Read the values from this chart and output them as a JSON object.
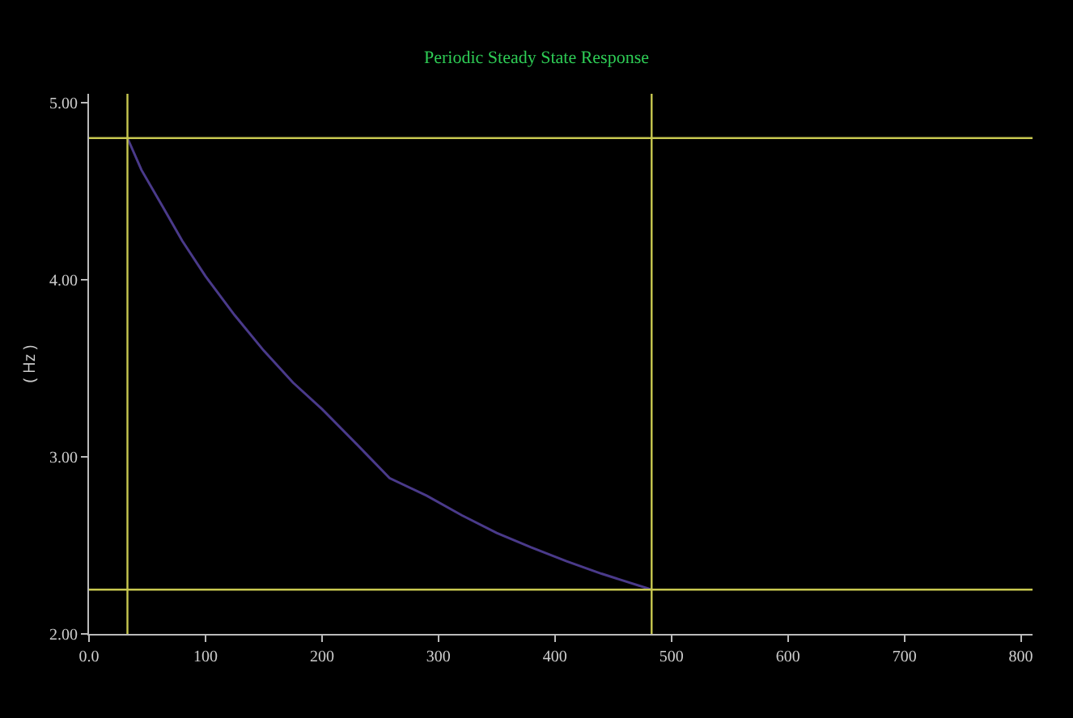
{
  "chart_data": {
    "type": "line",
    "title": "Periodic Steady State Response",
    "ylabel": "( Hz )",
    "x": [
      33,
      45,
      60,
      80,
      100,
      125,
      150,
      175,
      200,
      230,
      258,
      290,
      320,
      350,
      379,
      410,
      440,
      483
    ],
    "series": [
      {
        "color": "#4a3a8a",
        "values": [
          4.8,
          4.62,
          4.45,
          4.22,
          4.02,
          3.8,
          3.6,
          3.42,
          3.27,
          3.07,
          2.88,
          2.78,
          2.67,
          2.57,
          2.49,
          2.41,
          2.34,
          2.25
        ]
      }
    ],
    "xlim": [
      0,
      810
    ],
    "ylim": [
      2,
      5.05
    ],
    "xticks": [
      {
        "value": 0,
        "label": "0.0"
      },
      100,
      200,
      300,
      400,
      500,
      600,
      700,
      800
    ],
    "yticks": [
      {
        "value": 2,
        "label": "2.00"
      },
      {
        "value": 3,
        "label": "3.00"
      },
      {
        "value": 4,
        "label": "4.00"
      },
      {
        "value": 5,
        "label": "5.00"
      }
    ],
    "ref_lines": [
      {
        "axis": "y",
        "value": 4.8,
        "color": "#c8c850"
      },
      {
        "axis": "y",
        "value": 2.25,
        "color": "#c8c850"
      },
      {
        "axis": "x",
        "value": 33,
        "color": "#c8c850"
      },
      {
        "axis": "x",
        "value": 483,
        "color": "#c8c850"
      }
    ],
    "grid": false,
    "marker": "none",
    "line_style": "solid"
  }
}
